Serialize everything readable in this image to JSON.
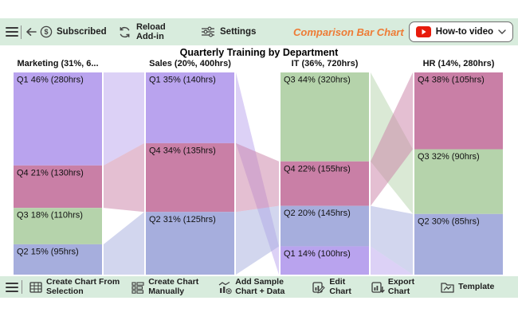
{
  "top_toolbar": {
    "subscribed": "Subscribed",
    "reload_line1": "Reload",
    "reload_line2": "Add-in",
    "settings": "Settings",
    "app_title": "Comparison Bar Chart",
    "app_title_color": "#ee7b35",
    "howto_video": "How-to video"
  },
  "chart_data": {
    "type": "bar",
    "variant": "comparison-stacked-columns-with-ribbons",
    "title": "Quarterly Training by Department",
    "quarter_colors": {
      "Q1": "#b9a3ee",
      "Q2": "#a6aedd",
      "Q3": "#b5d3ab",
      "Q4": "#c97fa6"
    },
    "ribbon_opacity": 0.5,
    "columns": [
      {
        "header": "Marketing (31%, 6...",
        "segments": [
          {
            "quarter": "Q1",
            "percent": 46,
            "hours": 280,
            "label": "Q1 46% (280hrs)"
          },
          {
            "quarter": "Q4",
            "percent": 21,
            "hours": 130,
            "label": "Q4 21% (130hrs)"
          },
          {
            "quarter": "Q3",
            "percent": 18,
            "hours": 110,
            "label": "Q3 18% (110hrs)"
          },
          {
            "quarter": "Q2",
            "percent": 15,
            "hours": 95,
            "label": "Q2 15% (95hrs)"
          }
        ]
      },
      {
        "header": "Sales (20%, 400hrs)",
        "segments": [
          {
            "quarter": "Q1",
            "percent": 35,
            "hours": 140,
            "label": "Q1 35% (140hrs)"
          },
          {
            "quarter": "Q4",
            "percent": 34,
            "hours": 135,
            "label": "Q4 34% (135hrs)"
          },
          {
            "quarter": "Q2",
            "percent": 31,
            "hours": 125,
            "label": "Q2 31% (125hrs)"
          }
        ]
      },
      {
        "header": "IT (36%, 720hrs)",
        "segments": [
          {
            "quarter": "Q3",
            "percent": 44,
            "hours": 320,
            "label": "Q3 44% (320hrs)"
          },
          {
            "quarter": "Q4",
            "percent": 22,
            "hours": 155,
            "label": "Q4 22% (155hrs)"
          },
          {
            "quarter": "Q2",
            "percent": 20,
            "hours": 145,
            "label": "Q2 20% (145hrs)"
          },
          {
            "quarter": "Q1",
            "percent": 14,
            "hours": 100,
            "label": "Q1 14% (100hrs)"
          }
        ]
      },
      {
        "header": "HR (14%, 280hrs)",
        "segments": [
          {
            "quarter": "Q4",
            "percent": 38,
            "hours": 105,
            "label": "Q4 38% (105hrs)"
          },
          {
            "quarter": "Q3",
            "percent": 32,
            "hours": 90,
            "label": "Q3 32% (90hrs)"
          },
          {
            "quarter": "Q2",
            "percent": 30,
            "hours": 85,
            "label": "Q2 30% (85hrs)"
          }
        ]
      }
    ]
  },
  "bottom_toolbar": {
    "items": [
      {
        "line1": "Create Chart From",
        "line2": "Selection",
        "icon": "table-grid-icon"
      },
      {
        "line1": "Create Chart",
        "line2": "Manually",
        "icon": "form-list-icon"
      },
      {
        "line1": "Add Sample",
        "line2": "Chart + Data",
        "icon": "sample-chart-icon"
      },
      {
        "line1": "Edit",
        "line2": "Chart",
        "icon": "edit-chart-icon"
      },
      {
        "line1": "Export",
        "line2": "Chart",
        "icon": "export-chart-icon"
      },
      {
        "line1": "Template",
        "line2": "",
        "icon": "template-icon"
      }
    ]
  }
}
